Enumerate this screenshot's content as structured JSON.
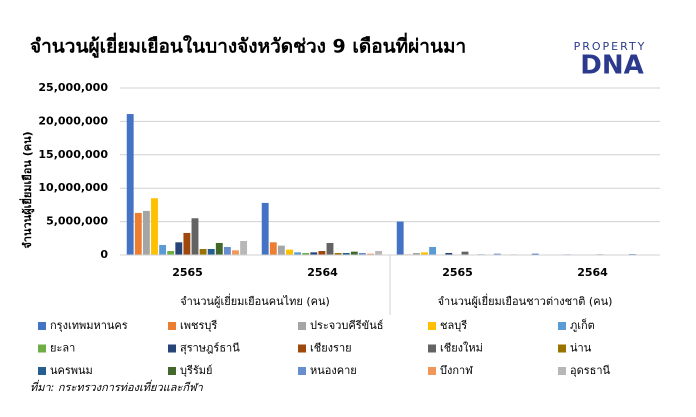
{
  "chart_data": {
    "type": "bar",
    "title": "จำนวนผู้เยี่ยมเยือนในบางจังหวัดช่วง 9 เดือนที่ผ่านมา",
    "y_label": "จำนวนผู้เยี่ยมเยือน (คน)",
    "source": "ที่มา: กระทรวงการท่องเที่ยวและกีฬา",
    "logo": {
      "top": "PROPERTY",
      "main": "DNA"
    },
    "categories": [
      "2565",
      "2564",
      "2565",
      "2564"
    ],
    "category_groups": [
      "จำนวนผู้เยี่ยมเยือนคนไทย (คน)",
      "จำนวนผู้เยี่ยมเยือนชาวต่างชาติ (คน)"
    ],
    "ylim": [
      0,
      25000000
    ],
    "yticks": [
      0,
      {
        "value": 5000000,
        "label": "5,000,000"
      },
      {
        "value": 10000000,
        "label": "10,000,000"
      },
      {
        "value": 15000000,
        "label": "15,000,000"
      },
      {
        "value": 20000000,
        "label": "20,000,000"
      },
      {
        "value": 25000000,
        "label": "25,000,000"
      }
    ],
    "grid": true,
    "series": [
      {
        "name": "กรุงเทพมหานคร",
        "color": "#4472c4",
        "values": [
          21100000,
          7800000,
          5000000,
          200000
        ]
      },
      {
        "name": "เพชรบุรี",
        "color": "#ed7d31",
        "values": [
          6300000,
          1900000,
          100000,
          20000
        ]
      },
      {
        "name": "ประจวบคีรีขันธ์",
        "color": "#a5a5a5",
        "values": [
          6600000,
          1400000,
          300000,
          50000
        ]
      },
      {
        "name": "ชลบุรี",
        "color": "#ffc000",
        "values": [
          8500000,
          800000,
          400000,
          50000
        ]
      },
      {
        "name": "ภูเก็ต",
        "color": "#5b9bd5",
        "values": [
          1500000,
          400000,
          1200000,
          100000
        ]
      },
      {
        "name": "ยะลา",
        "color": "#70ad47",
        "values": [
          600000,
          300000,
          50000,
          10000
        ]
      },
      {
        "name": "สุราษฎร์ธานี",
        "color": "#264478",
        "values": [
          1900000,
          400000,
          300000,
          50000
        ]
      },
      {
        "name": "เชียงราย",
        "color": "#9e480e",
        "values": [
          3300000,
          600000,
          50000,
          10000
        ]
      },
      {
        "name": "เชียงใหม่",
        "color": "#636363",
        "values": [
          5500000,
          1800000,
          500000,
          100000
        ]
      },
      {
        "name": "น่าน",
        "color": "#997300",
        "values": [
          900000,
          300000,
          20000,
          10000
        ]
      },
      {
        "name": "นครพนม",
        "color": "#255e91",
        "values": [
          900000,
          300000,
          100000,
          20000
        ]
      },
      {
        "name": "บุรีรัมย์",
        "color": "#43682b",
        "values": [
          1800000,
          500000,
          50000,
          10000
        ]
      },
      {
        "name": "หนองคาย",
        "color": "#698ed0",
        "values": [
          1200000,
          300000,
          200000,
          150000
        ]
      },
      {
        "name": "บึงกาฬ",
        "color": "#f1975a",
        "values": [
          700000,
          200000,
          20000,
          10000
        ]
      },
      {
        "name": "อุดรธานี",
        "color": "#b7b7b7",
        "values": [
          2100000,
          600000,
          100000,
          30000
        ]
      }
    ]
  }
}
